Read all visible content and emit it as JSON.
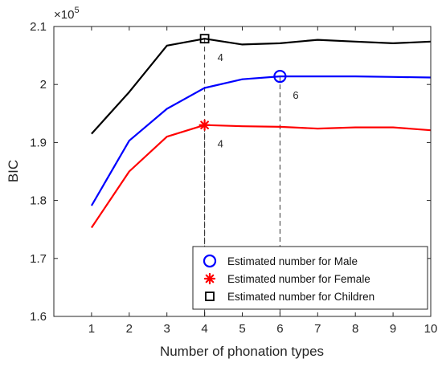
{
  "chart_data": {
    "type": "line",
    "title": "",
    "xlabel": "Number of phonation types",
    "ylabel": "BIC",
    "y_exponent_label": "×10",
    "y_exponent_power": "5",
    "xlim": [
      0,
      10
    ],
    "ylim": [
      1.6,
      2.1
    ],
    "x_ticks": [
      1,
      2,
      3,
      4,
      5,
      6,
      7,
      8,
      9,
      10
    ],
    "x_tick_labels": [
      "1",
      "2",
      "3",
      "4",
      "5",
      "6",
      "7",
      "8",
      "9",
      "10"
    ],
    "y_ticks": [
      1.6,
      1.7,
      1.8,
      1.9,
      2.0,
      2.1
    ],
    "y_tick_labels": [
      "1.6",
      "1.7",
      "1.8",
      "1.9",
      "2",
      "2.1"
    ],
    "x": [
      1,
      2,
      3,
      4,
      5,
      6,
      7,
      8,
      9,
      10
    ],
    "grid": false,
    "legend_position": "bottom-right",
    "series": [
      {
        "key": "children",
        "color": "#000000",
        "values": [
          1.915,
          1.987,
          2.067,
          2.079,
          2.069,
          2.071,
          2.077,
          2.074,
          2.071,
          2.074
        ],
        "marker": "square",
        "marker_x": 4,
        "marker_y": 2.079,
        "annotation": "4"
      },
      {
        "key": "male",
        "color": "#0000ff",
        "values": [
          1.791,
          1.903,
          1.958,
          1.994,
          2.009,
          2.014,
          2.014,
          2.014,
          2.013,
          2.012
        ],
        "marker": "circle",
        "marker_x": 6,
        "marker_y": 2.014,
        "annotation": "6"
      },
      {
        "key": "female",
        "color": "#ff0000",
        "values": [
          1.753,
          1.85,
          1.91,
          1.93,
          1.928,
          1.927,
          1.924,
          1.926,
          1.926,
          1.921
        ],
        "marker": "asterisk",
        "marker_x": 4,
        "marker_y": 1.93,
        "annotation": "4"
      }
    ],
    "legend": [
      {
        "label": "Estimated number for Male",
        "marker": "circle",
        "color": "#0000ff"
      },
      {
        "label": "Estimated number for Female",
        "marker": "asterisk",
        "color": "#ff0000"
      },
      {
        "label": "Estimated number for Children",
        "marker": "square",
        "color": "#000000"
      }
    ]
  }
}
